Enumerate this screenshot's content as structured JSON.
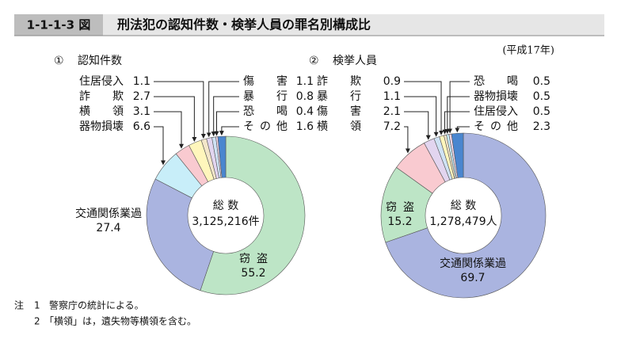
{
  "header": {
    "figure_number": "1-1-1-3 図",
    "title": "刑法犯の認知件数・検挙人員の罪名別構成比",
    "period": "(平成17年)"
  },
  "chart_data": [
    {
      "type": "donut",
      "number": "①",
      "title": "認知件数",
      "total_label": "総 数",
      "total_value": "3,125,216件",
      "categories": [
        "窃盗",
        "交通関係業過",
        "器物損壊",
        "横領",
        "詐欺",
        "住居侵入",
        "傷害",
        "暴行",
        "恐喝",
        "その他"
      ],
      "values": [
        55.2,
        27.4,
        6.6,
        3.1,
        2.7,
        1.1,
        1.1,
        0.8,
        0.4,
        1.6
      ],
      "colors": [
        "#bde5c6",
        "#aab4e0",
        "#c8eef9",
        "#f9cad0",
        "#fff6bc",
        "#f3e6c9",
        "#e2d5ef",
        "#cfe2f4",
        "#f0d5e6",
        "#4a86cf"
      ]
    },
    {
      "type": "donut",
      "number": "②",
      "title": "検挙人員",
      "total_label": "総 数",
      "total_value": "1,278,479人",
      "categories": [
        "交通関係業過",
        "窃盗",
        "横領",
        "傷害",
        "暴行",
        "詐欺",
        "住居侵入",
        "器物損壊",
        "恐喝",
        "その他"
      ],
      "values": [
        69.7,
        15.2,
        7.2,
        2.1,
        1.1,
        0.9,
        0.5,
        0.5,
        0.5,
        2.3
      ],
      "colors": [
        "#aab4e0",
        "#bde5c6",
        "#f9cad0",
        "#e2d5ef",
        "#cfe2f4",
        "#fff6bc",
        "#f3e6c9",
        "#c8eef9",
        "#f0d5e6",
        "#4a86cf"
      ]
    }
  ],
  "notes": [
    {
      "marker": "注",
      "number": "1",
      "text": "警察庁の統計による。"
    },
    {
      "number": "2",
      "text": "「横領」は，遺失物等横領を含む。"
    }
  ]
}
